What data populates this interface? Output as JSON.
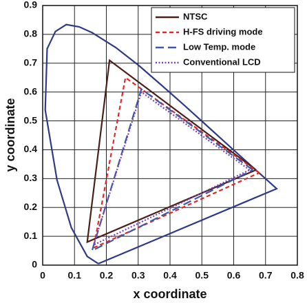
{
  "chart_data": {
    "type": "line",
    "xlabel": "x coordinate",
    "ylabel": "y coordinate",
    "xlim": [
      0,
      0.8
    ],
    "ylim": [
      0,
      0.9
    ],
    "xticks": [
      0,
      0.1,
      0.2,
      0.3,
      0.4,
      0.5,
      0.6,
      0.7,
      0.8
    ],
    "yticks": [
      0,
      0.1,
      0.2,
      0.3,
      0.4,
      0.5,
      0.6,
      0.7,
      0.8,
      0.9
    ],
    "grid": true,
    "legend": "upper right",
    "series": [
      {
        "color": "#2e3a87",
        "dash": "solid",
        "x": [
          0.175,
          0.14,
          0.09,
          0.045,
          0.008,
          0.014,
          0.04,
          0.074,
          0.115,
          0.155,
          0.23,
          0.302,
          0.373,
          0.444,
          0.512,
          0.575,
          0.627,
          0.735,
          0.175
        ],
        "values": [
          0.005,
          0.03,
          0.13,
          0.295,
          0.538,
          0.75,
          0.81,
          0.834,
          0.826,
          0.806,
          0.754,
          0.692,
          0.624,
          0.555,
          0.487,
          0.424,
          0.372,
          0.265,
          0.005
        ]
      },
      {
        "name": "NTSC",
        "color": "#4a1f1a",
        "dash": "solid",
        "x": [
          0.67,
          0.21,
          0.14,
          0.67
        ],
        "values": [
          0.33,
          0.71,
          0.08,
          0.33
        ]
      },
      {
        "name": "H-FS driving mode",
        "color": "#e02828",
        "dash": "dashed",
        "x": [
          0.68,
          0.26,
          0.16,
          0.68
        ],
        "values": [
          0.32,
          0.65,
          0.06,
          0.32
        ]
      },
      {
        "name": "Low Temp. mode",
        "color": "#3a5aa8",
        "dash": "longdash",
        "x": [
          0.66,
          0.31,
          0.155,
          0.66
        ],
        "values": [
          0.33,
          0.61,
          0.05,
          0.33
        ]
      },
      {
        "name": "Conventional LCD",
        "color": "#7a3fc0",
        "dash": "dotted",
        "x": [
          0.65,
          0.31,
          0.16,
          0.65
        ],
        "values": [
          0.33,
          0.6,
          0.07,
          0.33
        ]
      }
    ]
  }
}
